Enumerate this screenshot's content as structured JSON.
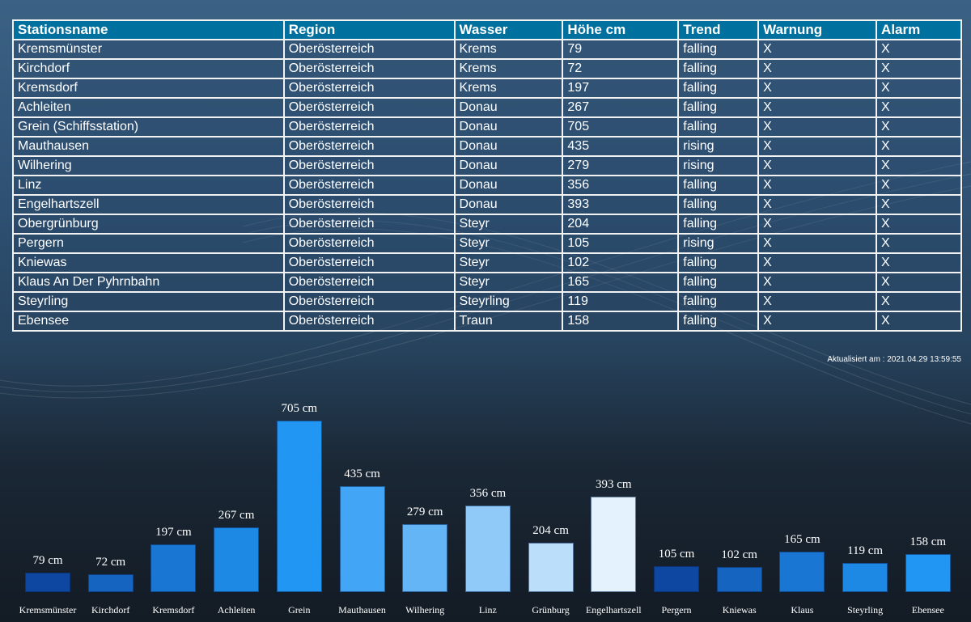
{
  "table": {
    "headers": [
      "Stationsname",
      "Region",
      "Wasser",
      "Höhe cm",
      "Trend",
      "Warnung",
      "Alarm"
    ],
    "rows": [
      [
        "Kremsmünster",
        "Oberösterreich",
        "Krems",
        "79",
        "falling",
        "X",
        "X"
      ],
      [
        "Kirchdorf",
        "Oberösterreich",
        "Krems",
        "72",
        "falling",
        "X",
        "X"
      ],
      [
        "Kremsdorf",
        "Oberösterreich",
        "Krems",
        "197",
        "falling",
        "X",
        "X"
      ],
      [
        "Achleiten",
        "Oberösterreich",
        "Donau",
        "267",
        "falling",
        "X",
        "X"
      ],
      [
        "Grein (Schiffsstation)",
        "Oberösterreich",
        "Donau",
        "705",
        "falling",
        "X",
        "X"
      ],
      [
        "Mauthausen",
        "Oberösterreich",
        "Donau",
        "435",
        "rising",
        "X",
        "X"
      ],
      [
        "Wilhering",
        "Oberösterreich",
        "Donau",
        "279",
        "rising",
        "X",
        "X"
      ],
      [
        "Linz",
        "Oberösterreich",
        "Donau",
        "356",
        "falling",
        "X",
        "X"
      ],
      [
        "Engelhartszell",
        "Oberösterreich",
        "Donau",
        "393",
        "falling",
        "X",
        "X"
      ],
      [
        "Obergrünburg",
        "Oberösterreich",
        "Steyr",
        "204",
        "falling",
        "X",
        "X"
      ],
      [
        "Pergern",
        "Oberösterreich",
        "Steyr",
        "105",
        "rising",
        "X",
        "X"
      ],
      [
        "Kniewas",
        "Oberösterreich",
        "Steyr",
        "102",
        "falling",
        "X",
        "X"
      ],
      [
        "Klaus An Der Pyhrnbahn",
        "Oberösterreich",
        "Steyr",
        "165",
        "falling",
        "X",
        "X"
      ],
      [
        "Steyrling",
        "Oberösterreich",
        "Steyrling",
        "119",
        "falling",
        "X",
        "X"
      ],
      [
        "Ebensee",
        "Oberösterreich",
        "Traun",
        "158",
        "falling",
        "X",
        "X"
      ]
    ]
  },
  "updated": "Aktualisiert am : 2021.04.29 13:59:55",
  "chart_data": {
    "type": "bar",
    "unit": "cm",
    "categories": [
      "Kremsmünster",
      "Kirchdorf",
      "Kremsdorf",
      "Achleiten",
      "Grein",
      "Mauthausen",
      "Wilhering",
      "Linz",
      "Grünburg",
      "Engelhartszell",
      "Pergern",
      "Kniewas",
      "Klaus",
      "Steyrling",
      "Ebensee"
    ],
    "values": [
      79,
      72,
      197,
      267,
      705,
      435,
      279,
      356,
      204,
      393,
      105,
      102,
      165,
      119,
      158
    ],
    "value_labels": [
      "79 cm",
      "72 cm",
      "197 cm",
      "267 cm",
      "705 cm",
      "435 cm",
      "279 cm",
      "356 cm",
      "204 cm",
      "393 cm",
      "105 cm",
      "102 cm",
      "165 cm",
      "119 cm",
      "158 cm"
    ],
    "colors": [
      "#0d47a1",
      "#1565c0",
      "#1976d2",
      "#1e88e5",
      "#2196f3",
      "#42a5f5",
      "#64b5f6",
      "#90caf9",
      "#bbdefb",
      "#e3f2fd",
      "#0d47a1",
      "#1565c0",
      "#1976d2",
      "#1e88e5",
      "#2196f3"
    ],
    "ylim": [
      0,
      705
    ]
  }
}
